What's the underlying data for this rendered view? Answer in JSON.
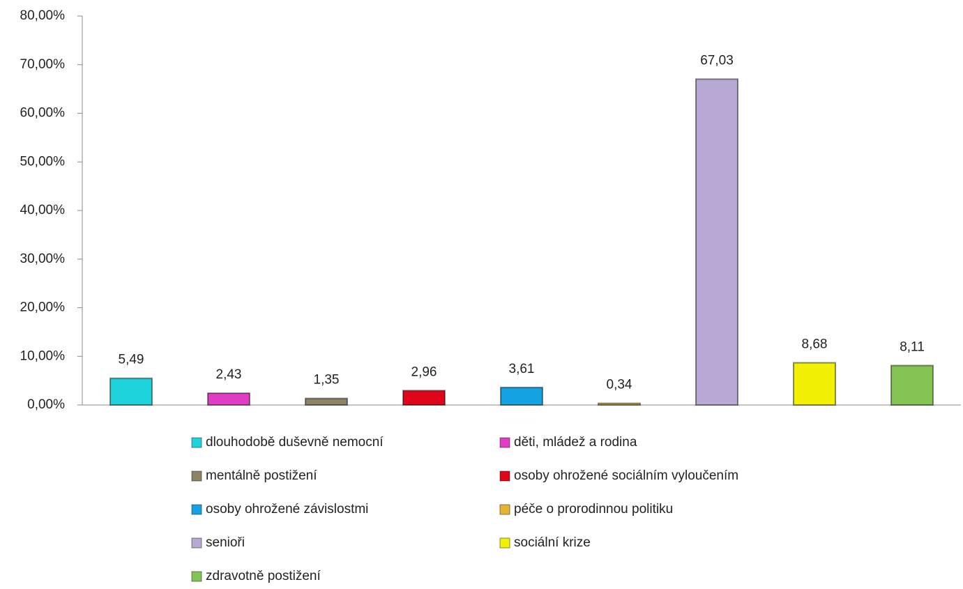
{
  "chart_data": {
    "type": "bar",
    "ylim": [
      0,
      80
    ],
    "yticks": [
      {
        "value": 0,
        "label": "0,00%"
      },
      {
        "value": 10,
        "label": "10,00%"
      },
      {
        "value": 20,
        "label": "20,00%"
      },
      {
        "value": 30,
        "label": "30,00%"
      },
      {
        "value": 40,
        "label": "40,00%"
      },
      {
        "value": 50,
        "label": "50,00%"
      },
      {
        "value": 60,
        "label": "60,00%"
      },
      {
        "value": 70,
        "label": "70,00%"
      },
      {
        "value": 80,
        "label": "80,00%"
      }
    ],
    "series": [
      {
        "name": "dlouhodobě duševně nemocní",
        "color": "#1fd3dc",
        "values": [
          5.49
        ],
        "value_labels": [
          "5,49"
        ]
      },
      {
        "name": "děti, mládež a rodina",
        "color": "#e03cc4",
        "values": [
          2.43
        ],
        "value_labels": [
          "2,43"
        ]
      },
      {
        "name": "mentálně postižení",
        "color": "#8c8464",
        "values": [
          1.35
        ],
        "value_labels": [
          "1,35"
        ]
      },
      {
        "name": "osoby ohrožené sociálním vyloučením",
        "color": "#e0061a",
        "values": [
          2.96
        ],
        "value_labels": [
          "2,96"
        ]
      },
      {
        "name": "osoby ohrožené závislostmi",
        "color": "#14a2e0",
        "values": [
          3.61
        ],
        "value_labels": [
          "3,61"
        ]
      },
      {
        "name": "péče o prorodinnou politiku",
        "color": "#e8b234",
        "values": [
          0.34
        ],
        "value_labels": [
          "0,34"
        ]
      },
      {
        "name": "senioři",
        "color": "#b8a8d4",
        "values": [
          67.03
        ],
        "value_labels": [
          "67,03"
        ]
      },
      {
        "name": "sociální krize",
        "color": "#f2f004",
        "values": [
          8.68
        ],
        "value_labels": [
          "8,68"
        ]
      },
      {
        "name": "zdravotně postižení",
        "color": "#84c454",
        "values": [
          8.11
        ],
        "value_labels": [
          "8,11"
        ]
      }
    ]
  }
}
